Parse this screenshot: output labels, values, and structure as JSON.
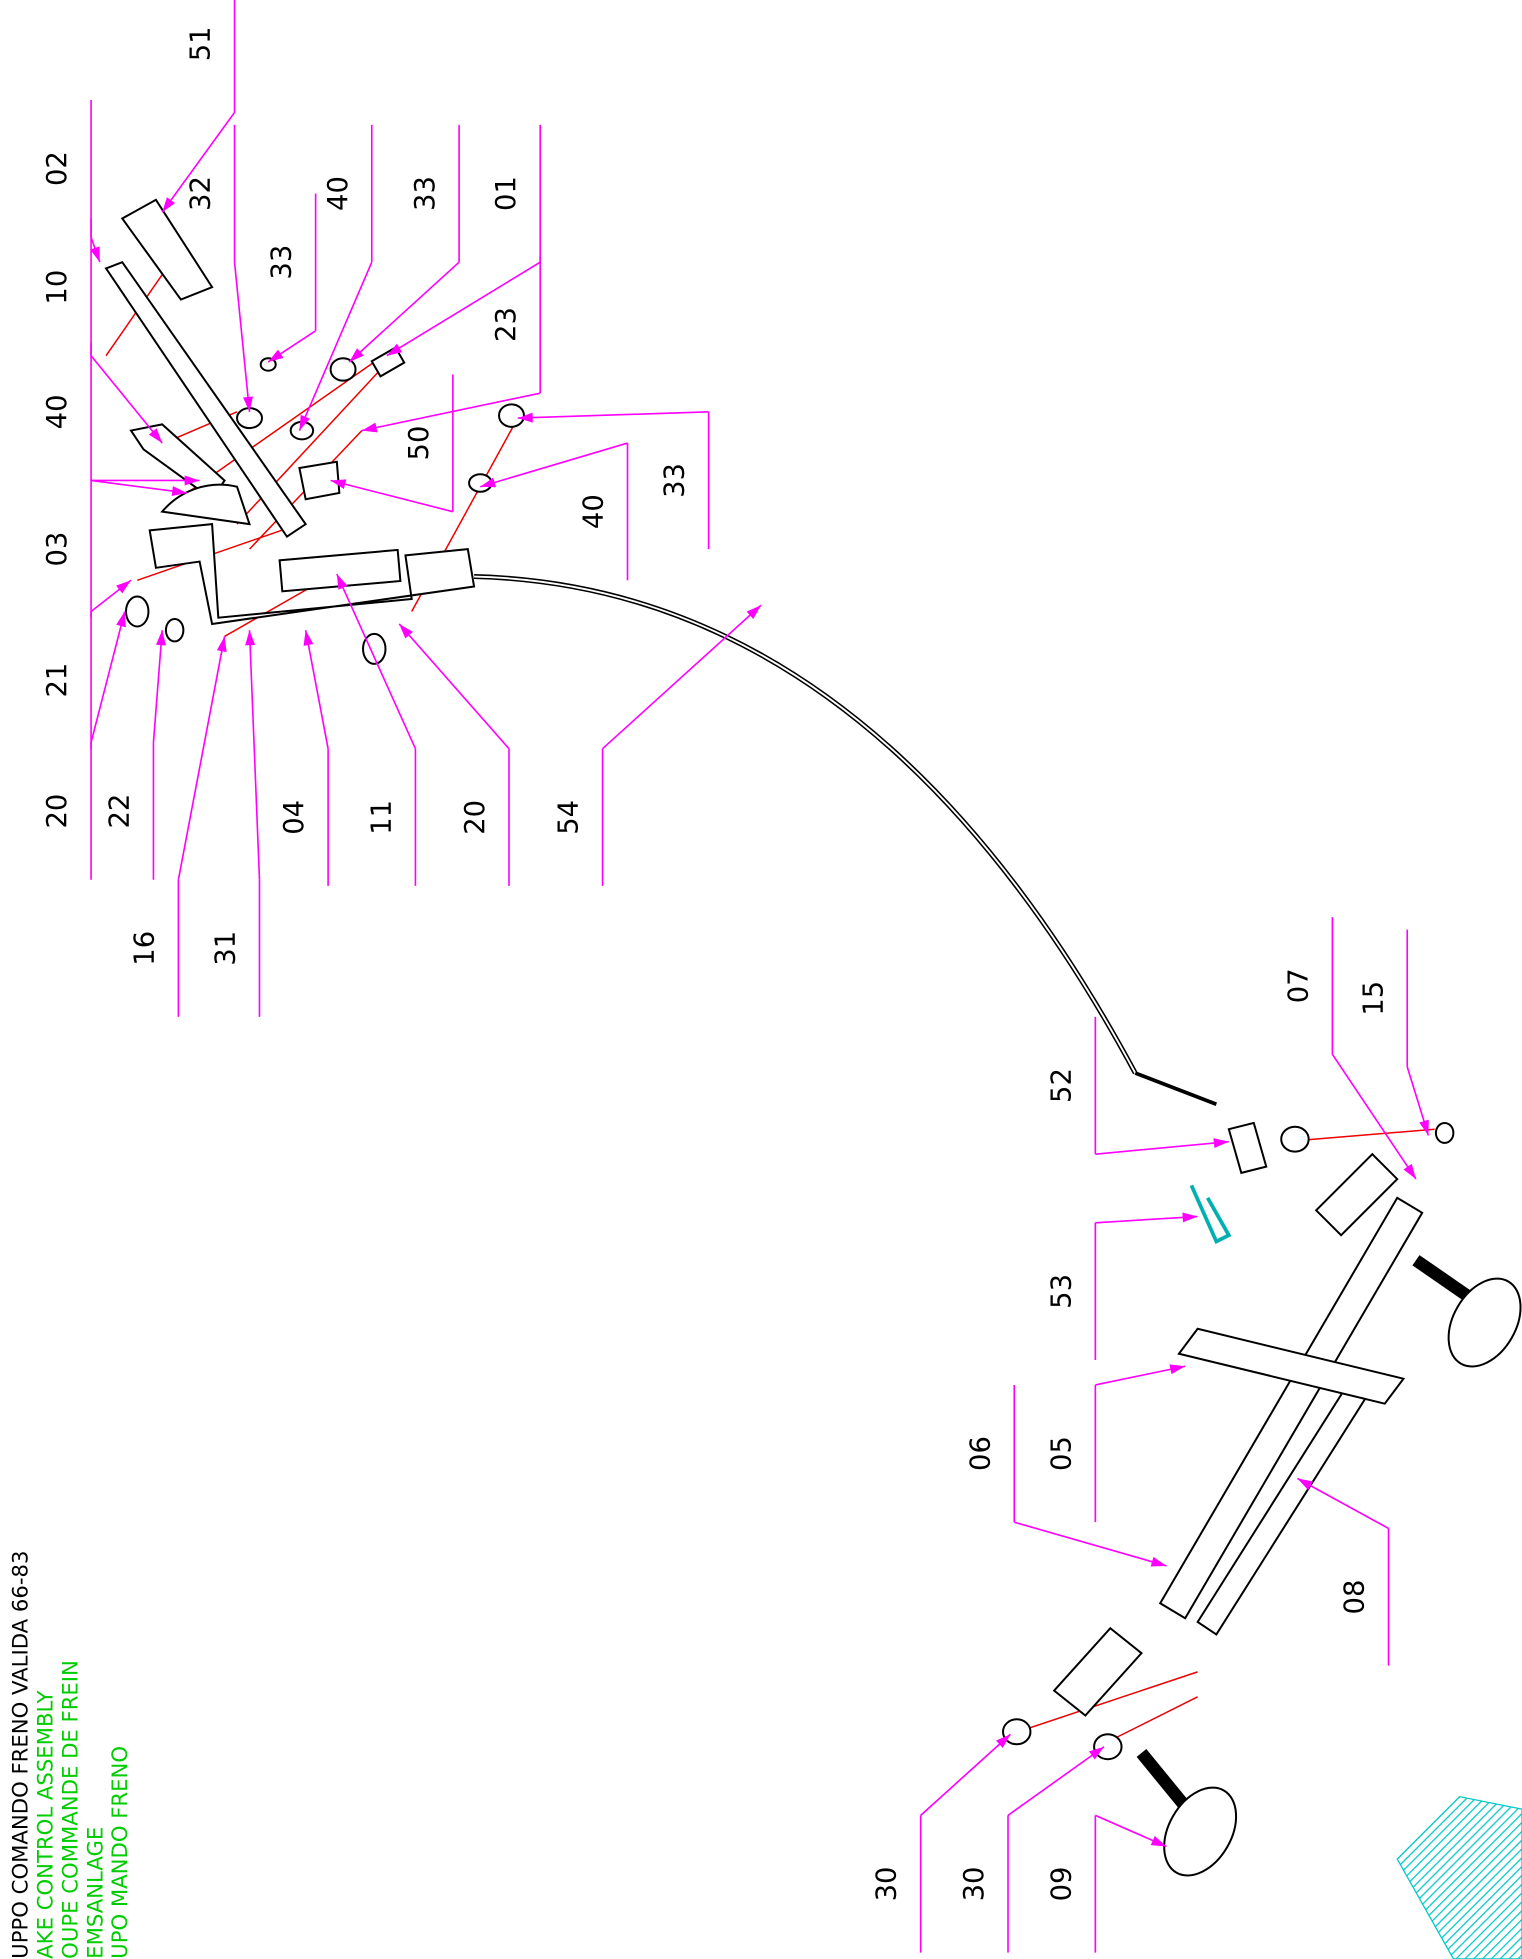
{
  "title_lines": [
    "UPPO COMANDO FRENO VALIDA 66-83",
    "AKE CONTROL ASSEMBLY",
    "OUPE COMMANDE DE FREIN",
    "EMSANLAGE",
    "UPO MANDO FRENO"
  ],
  "labels": [
    "51",
    "02",
    "32",
    "33",
    "40",
    "33",
    "01",
    "10",
    "23",
    "40",
    "50",
    "33",
    "03",
    "40",
    "21",
    "20",
    "22",
    "04",
    "11",
    "20",
    "54",
    "16",
    "31",
    "07",
    "15",
    "52",
    "53",
    "06",
    "05",
    "08",
    "30",
    "30",
    "09"
  ]
}
